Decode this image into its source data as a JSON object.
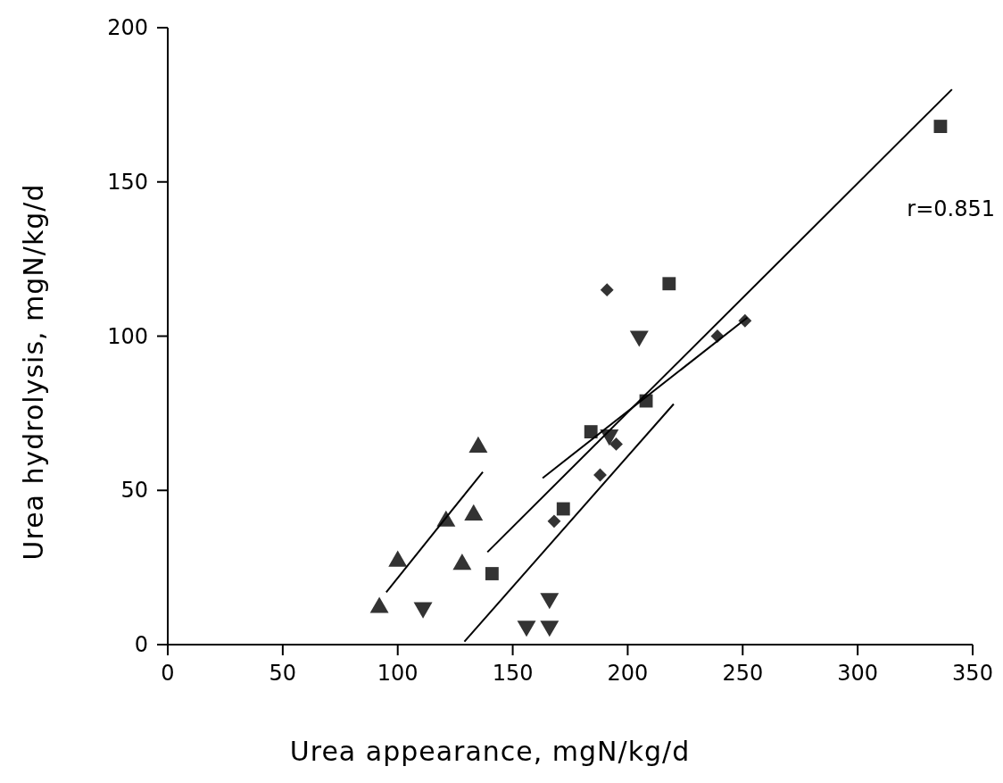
{
  "chart_data": {
    "type": "scatter",
    "xlabel": "Urea appearance, mgN/kg/d",
    "ylabel": "Urea hydrolysis, mgN/kg/d",
    "xlim": [
      0,
      350
    ],
    "ylim": [
      0,
      200
    ],
    "xticks": [
      0,
      50,
      100,
      150,
      200,
      250,
      300,
      350
    ],
    "yticks": [
      0,
      50,
      100,
      150,
      200
    ],
    "grid": false,
    "annotations": [
      "r=0.851"
    ],
    "series": [
      {
        "marker": "triangle",
        "color": "#333333",
        "x": [
          92,
          100,
          121,
          128,
          133,
          135
        ],
        "values": [
          12,
          27,
          40,
          26,
          42,
          64
        ]
      },
      {
        "marker": "triangle-down",
        "color": "#333333",
        "x": [
          111,
          156,
          166,
          166,
          192,
          205
        ],
        "values": [
          12,
          6,
          15,
          6,
          68,
          100
        ]
      },
      {
        "marker": "square",
        "color": "#333333",
        "x": [
          141,
          172,
          184,
          208,
          218,
          336
        ],
        "values": [
          23,
          44,
          69,
          79,
          117,
          168
        ]
      },
      {
        "marker": "diamond",
        "color": "#333333",
        "x": [
          168,
          188,
          191,
          195,
          239,
          251
        ],
        "values": [
          40,
          55,
          115,
          65,
          100,
          105
        ]
      },
      {
        "type": "line",
        "color": "#000000",
        "x": [
          95,
          137
        ],
        "values": [
          17,
          56
        ]
      },
      {
        "type": "line",
        "color": "#000000",
        "x": [
          129,
          220
        ],
        "values": [
          1,
          78
        ]
      },
      {
        "type": "line",
        "color": "#000000",
        "x": [
          163,
          252
        ],
        "values": [
          54,
          106
        ]
      },
      {
        "type": "line",
        "color": "#000000",
        "x": [
          139,
          341
        ],
        "values": [
          30,
          180
        ]
      }
    ]
  }
}
